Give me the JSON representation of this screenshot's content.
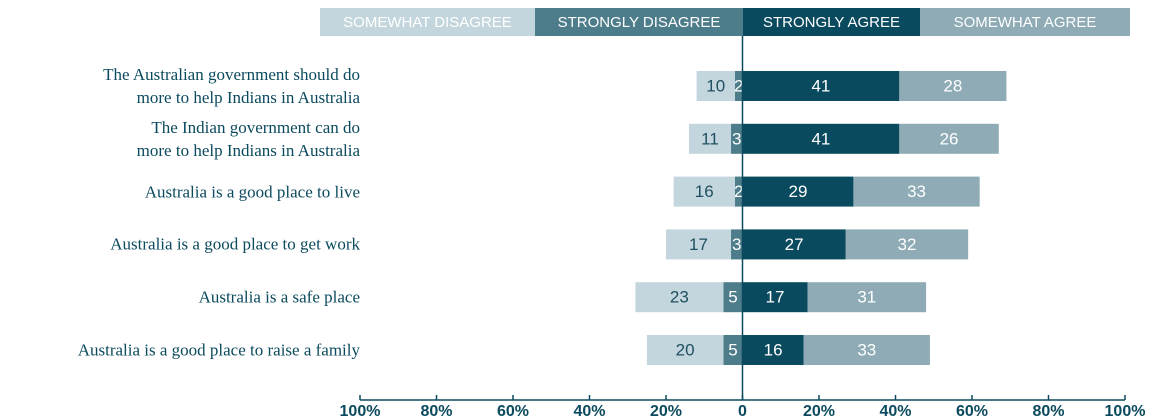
{
  "chart_data": {
    "type": "diverging_bar",
    "categories": [
      "The Australian government should do\nmore to help Indians in Australia",
      "The Indian government can do\nmore to help Indians in Australia",
      "Australia is a good place to live",
      "Australia is a good place to get work",
      "Australia is a safe place",
      "Australia is a good place to raise a family"
    ],
    "series": [
      {
        "name": "SOMEWHAT DISAGREE",
        "color": "#c3d6dd",
        "values": [
          -10,
          -11,
          -16,
          -17,
          -23,
          -20
        ],
        "value_labels": [
          "10",
          "11",
          "16",
          "17",
          "23",
          "20"
        ]
      },
      {
        "name": "STRONGLY DISAGREE",
        "color": "#4d7c8b",
        "values": [
          -2,
          -3,
          -2,
          -3,
          -5,
          -5
        ],
        "value_labels": [
          "2",
          "3",
          "2",
          "3",
          "5",
          "5"
        ]
      },
      {
        "name": "STRONGLY AGREE",
        "color": "#0a4a5f",
        "values": [
          41,
          41,
          29,
          27,
          17,
          16
        ]
      },
      {
        "name": "SOMEWHAT AGREE",
        "color": "#8eabb6",
        "values": [
          28,
          26,
          33,
          32,
          31,
          33
        ]
      }
    ],
    "xlim": [
      -100,
      100
    ],
    "xticks": [
      {
        "value": -100,
        "label": "100%"
      },
      {
        "value": -80,
        "label": "80%"
      },
      {
        "value": -60,
        "label": "60%"
      },
      {
        "value": -40,
        "label": "40%"
      },
      {
        "value": -20,
        "label": "20%"
      },
      0,
      {
        "value": 20,
        "label": "20%"
      },
      {
        "value": 40,
        "label": "40%"
      },
      {
        "value": 60,
        "label": "60%"
      },
      {
        "value": 80,
        "label": "80%"
      },
      {
        "value": 100,
        "label": "100%"
      }
    ]
  }
}
